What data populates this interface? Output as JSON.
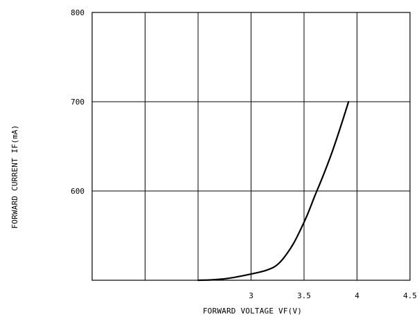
{
  "chart_data": {
    "type": "line",
    "xlabel": "FORWARD VOLTAGE VF(V)",
    "ylabel": "FORWARD CURRENT IF(mA)",
    "xlim": [
      1.5,
      4.5
    ],
    "ylim": [
      500,
      800
    ],
    "grid": true,
    "xticks": [
      {
        "value": 3,
        "label": "3"
      },
      {
        "value": 3.5,
        "label": "3.5"
      },
      {
        "value": 4,
        "label": "4"
      },
      {
        "value": 4.5,
        "label": "4.5"
      }
    ],
    "yticks": [
      {
        "value": 600,
        "label": "600"
      },
      {
        "value": 700,
        "label": "700"
      },
      {
        "value": 800,
        "label": "800"
      }
    ],
    "x_grid_values": [
      2.0,
      2.5,
      3.0,
      3.5,
      4.0
    ],
    "y_grid_values": [
      600,
      700
    ],
    "series": [
      {
        "color": "#000000",
        "x": [
          2.5,
          2.62,
          2.74,
          2.84,
          2.94,
          3.04,
          3.14,
          3.22,
          3.28,
          3.34,
          3.4,
          3.46,
          3.53,
          3.6,
          3.68,
          3.76,
          3.84,
          3.92
        ],
        "y": [
          500,
          500.4,
          501.5,
          503.2,
          505.5,
          508,
          511,
          515,
          521,
          530,
          541,
          555,
          573,
          594,
          617,
          642,
          670,
          700
        ]
      }
    ]
  }
}
